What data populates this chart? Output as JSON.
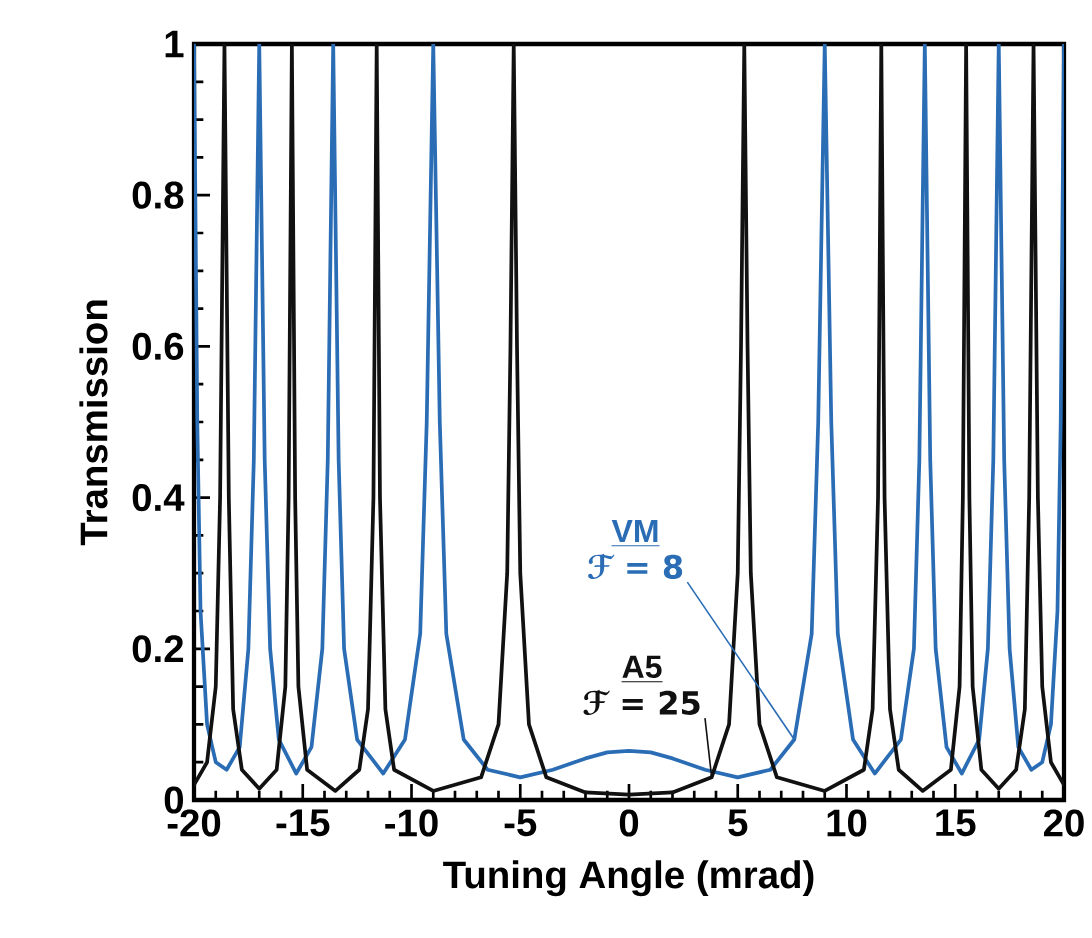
{
  "chart_data": {
    "type": "line",
    "xlabel": "Tuning Angle (mrad)",
    "ylabel": "Transmission",
    "xlim": [
      -20,
      20
    ],
    "xticks": [
      -20,
      -15,
      -10,
      -5,
      0,
      5,
      10,
      15,
      20
    ],
    "ylim": [
      0,
      1
    ],
    "yticks": [
      0,
      0.2,
      0.4,
      0.6,
      0.8,
      1
    ],
    "grid": false,
    "marker": "none",
    "line_style": "solid",
    "annotations": [
      {
        "text": "ℱ = 8",
        "x": 7.6,
        "y": 0.08
      },
      {
        "text": "ℱ = 25",
        "x": 3.8,
        "y": 0.03
      }
    ],
    "series": [
      {
        "name": "VM",
        "color": "#2a6db5",
        "x": [
          -20,
          -19.85,
          -19.7,
          -19.4,
          -19.0,
          -18.5,
          -17.9,
          -17.5,
          -17.25,
          -17.0,
          -16.75,
          -16.5,
          -16.1,
          -15.3,
          -14.6,
          -14.1,
          -13.85,
          -13.6,
          -13.35,
          -13.1,
          -12.5,
          -11.3,
          -10.3,
          -9.6,
          -9.3,
          -9.0,
          -8.7,
          -8.4,
          -7.6,
          -6.5,
          -5,
          -3.5,
          -2,
          -1,
          0,
          1,
          2,
          3.5,
          5,
          6.5,
          7.6,
          8.4,
          8.7,
          9.0,
          9.3,
          9.6,
          10.3,
          11.3,
          12.5,
          13.1,
          13.35,
          13.6,
          13.85,
          14.1,
          14.6,
          15.3,
          16.1,
          16.5,
          16.75,
          17.0,
          17.25,
          17.5,
          17.9,
          18.5,
          19.0,
          19.4,
          19.7,
          19.85,
          20
        ],
        "values": [
          1,
          0.5,
          0.25,
          0.1,
          0.05,
          0.04,
          0.07,
          0.2,
          0.45,
          1,
          0.45,
          0.2,
          0.08,
          0.035,
          0.07,
          0.2,
          0.45,
          1,
          0.45,
          0.2,
          0.08,
          0.035,
          0.08,
          0.22,
          0.5,
          1,
          0.5,
          0.22,
          0.08,
          0.04,
          0.03,
          0.04,
          0.055,
          0.063,
          0.065,
          0.063,
          0.055,
          0.04,
          0.03,
          0.04,
          0.08,
          0.22,
          0.5,
          1,
          0.5,
          0.22,
          0.08,
          0.035,
          0.08,
          0.2,
          0.45,
          1,
          0.45,
          0.2,
          0.07,
          0.035,
          0.08,
          0.2,
          0.45,
          1,
          0.45,
          0.2,
          0.07,
          0.04,
          0.05,
          0.1,
          0.25,
          0.5,
          1
        ]
      },
      {
        "name": "A5",
        "color": "#111111",
        "x": [
          -20,
          -19.4,
          -19.0,
          -18.8,
          -18.6,
          -18.4,
          -18.2,
          -17.8,
          -17,
          -16.2,
          -15.8,
          -15.65,
          -15.5,
          -15.35,
          -15.2,
          -14.8,
          -13.5,
          -12.4,
          -12.0,
          -11.75,
          -11.6,
          -11.45,
          -11.2,
          -10.8,
          -9,
          -6.8,
          -6.0,
          -5.6,
          -5.45,
          -5.3,
          -5.15,
          -5.0,
          -4.6,
          -3.8,
          -2,
          0,
          2,
          3.8,
          4.6,
          5.0,
          5.15,
          5.3,
          5.45,
          5.6,
          6.0,
          6.8,
          9,
          10.8,
          11.2,
          11.45,
          11.6,
          11.75,
          12.0,
          12.4,
          13.5,
          14.8,
          15.2,
          15.35,
          15.5,
          15.65,
          15.8,
          16.2,
          17,
          17.8,
          18.2,
          18.4,
          18.6,
          18.8,
          19.0,
          19.4,
          20
        ],
        "values": [
          0.02,
          0.05,
          0.15,
          0.4,
          1,
          0.4,
          0.12,
          0.04,
          0.015,
          0.04,
          0.15,
          0.4,
          1,
          0.4,
          0.15,
          0.04,
          0.012,
          0.04,
          0.12,
          0.4,
          1,
          0.4,
          0.12,
          0.04,
          0.012,
          0.03,
          0.1,
          0.3,
          0.6,
          1,
          0.6,
          0.3,
          0.1,
          0.03,
          0.01,
          0.007,
          0.01,
          0.03,
          0.1,
          0.3,
          0.6,
          1,
          0.6,
          0.3,
          0.1,
          0.03,
          0.012,
          0.04,
          0.12,
          0.4,
          1,
          0.4,
          0.12,
          0.04,
          0.012,
          0.04,
          0.15,
          0.4,
          1,
          0.4,
          0.15,
          0.04,
          0.015,
          0.04,
          0.12,
          0.4,
          1,
          0.4,
          0.15,
          0.05,
          0.02
        ]
      }
    ]
  }
}
